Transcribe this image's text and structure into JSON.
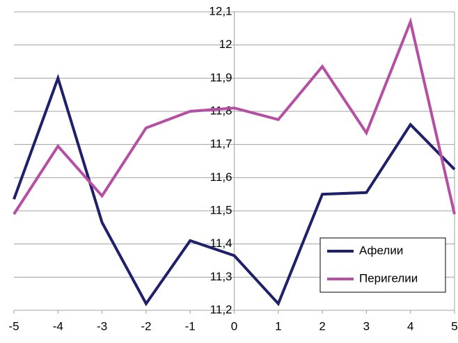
{
  "chart_data": {
    "type": "line",
    "x": [
      -5,
      -4,
      -3,
      -2,
      -1,
      0,
      1,
      2,
      3,
      4,
      5
    ],
    "series": [
      {
        "name": "Афелии",
        "color": "#1f1f6b",
        "values": [
          11.535,
          11.9,
          11.465,
          11.22,
          11.41,
          11.365,
          11.22,
          11.55,
          11.555,
          11.76,
          11.625
        ]
      },
      {
        "name": "Перигелии",
        "color": "#b54fa3",
        "values": [
          11.49,
          11.695,
          11.545,
          11.75,
          11.8,
          11.81,
          11.775,
          11.935,
          11.735,
          12.07,
          11.49
        ]
      }
    ],
    "xlim": [
      -5,
      5
    ],
    "xticks": [
      -5,
      -4,
      -3,
      -2,
      -1,
      0,
      1,
      2,
      3,
      4,
      5
    ],
    "ylim": [
      11.2,
      12.1
    ],
    "yticks": [
      {
        "value": 11.2,
        "label": "11,2"
      },
      {
        "value": 11.3,
        "label": "11,3"
      },
      {
        "value": 11.4,
        "label": "11,4"
      },
      {
        "value": 11.5,
        "label": "11,5"
      },
      {
        "value": 11.6,
        "label": "11,6"
      },
      {
        "value": 11.7,
        "label": "11,7"
      },
      {
        "value": 11.8,
        "label": "11,8"
      },
      {
        "value": 11.9,
        "label": "11,9"
      },
      12,
      {
        "value": 12.1,
        "label": "12,1"
      }
    ],
    "grid": true,
    "legend": "lower right"
  }
}
